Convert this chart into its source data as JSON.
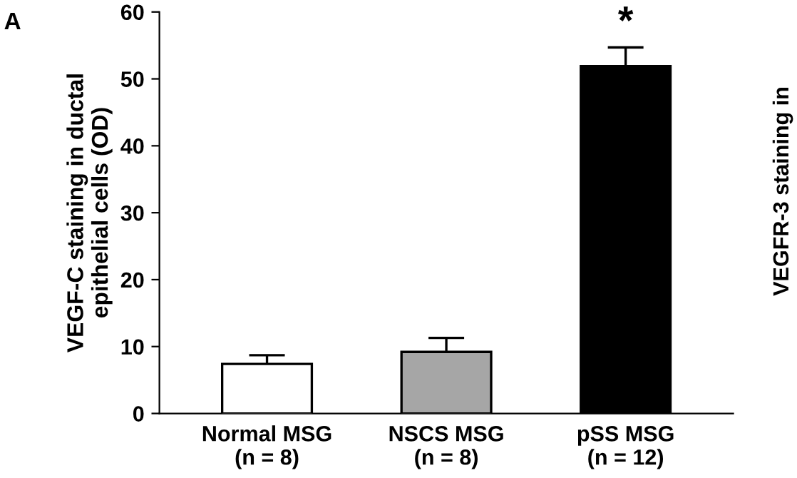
{
  "chart_data": {
    "type": "bar",
    "ylabel": "VEGF-C staining in ductal\nepithelial cells (OD)",
    "categories": [
      "Normal MSG\n(n = 8)",
      "NSCS MSG\n(n = 8)",
      "pSS MSG\n(n = 12)"
    ],
    "values": [
      7.4,
      9.2,
      51.9
    ],
    "errors": [
      1.3,
      2.1,
      2.8
    ],
    "colors": [
      "#ffffff",
      "#a6a6a6",
      "#000000"
    ],
    "ylim": [
      0,
      60
    ],
    "yticks": [
      0,
      10,
      20,
      30,
      40,
      50,
      60
    ],
    "grid": false,
    "legend": false,
    "annotations": [
      "A",
      {
        "text": "*",
        "x": "pSS MSG\n(n = 12)",
        "y": 55.5
      },
      "VEGFR-3 staining in"
    ]
  }
}
